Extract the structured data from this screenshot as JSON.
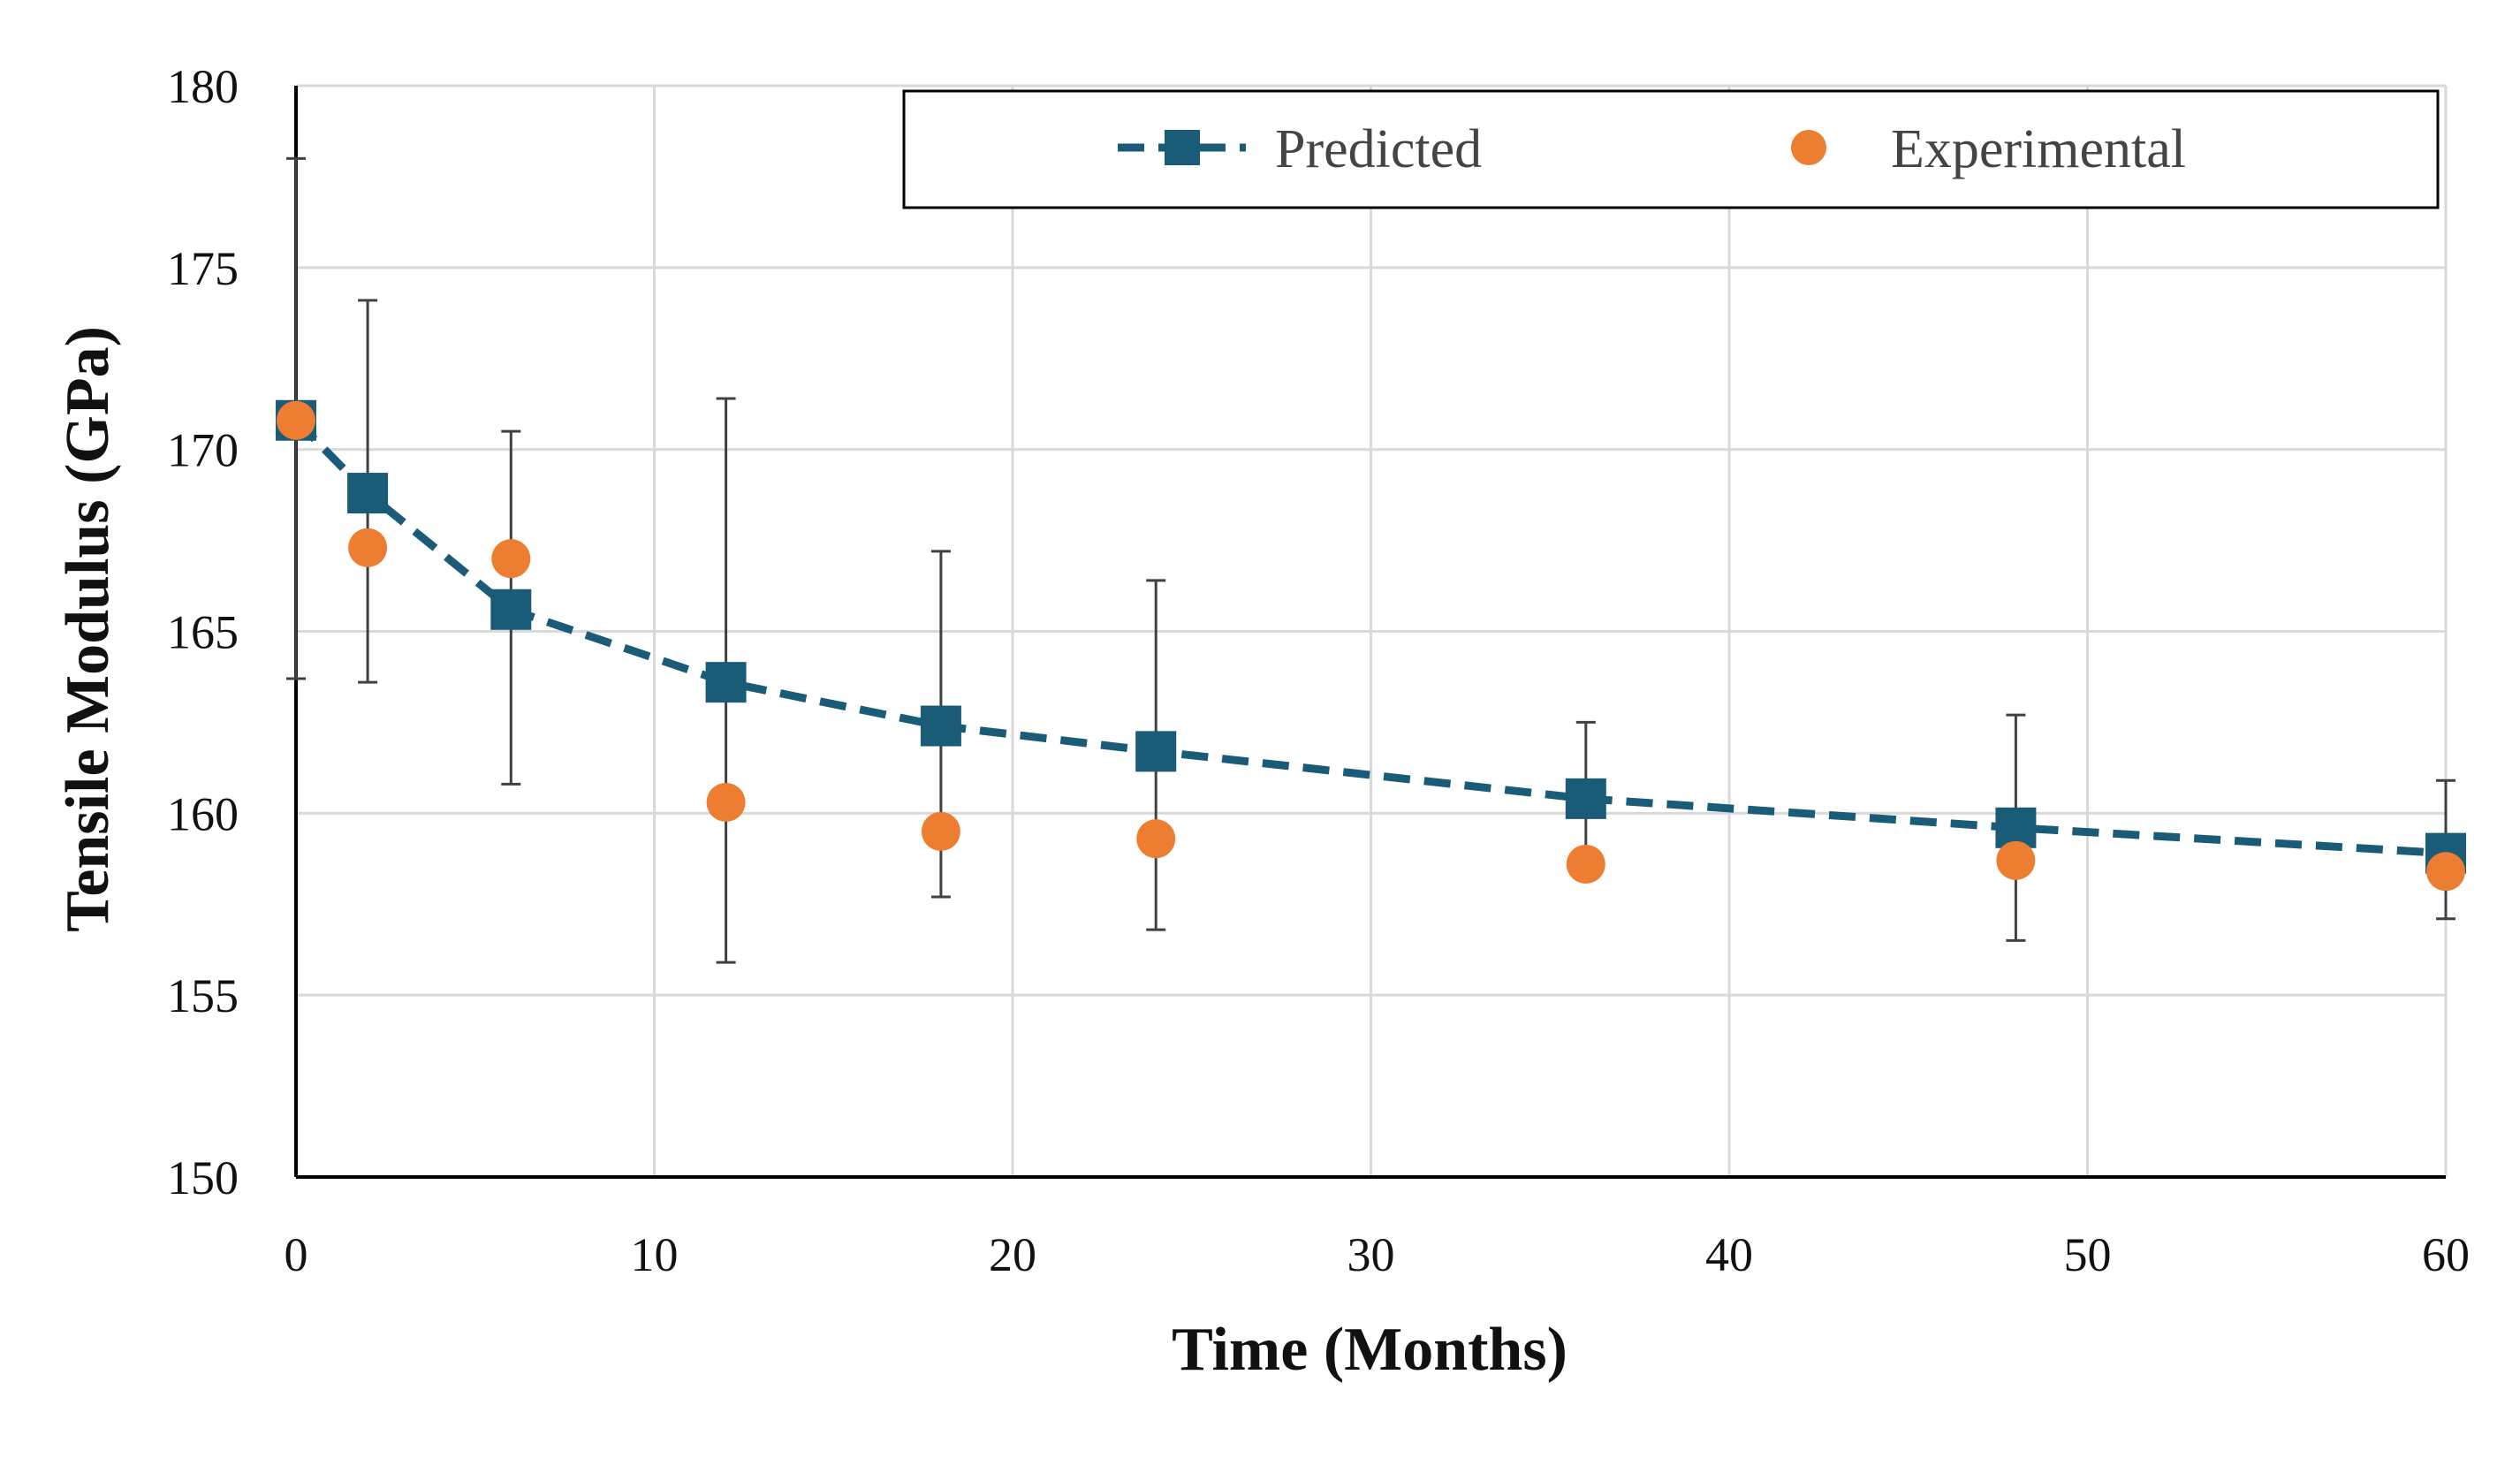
{
  "chart_data": {
    "type": "line",
    "title": "",
    "xlabel": "Time (Months)",
    "ylabel": "Tensile Modulus (GPa)",
    "xlim": [
      0,
      60
    ],
    "ylim": [
      150,
      180
    ],
    "xticks": [
      0,
      10,
      20,
      30,
      40,
      50,
      60
    ],
    "yticks": [
      150,
      155,
      160,
      165,
      170,
      175,
      180
    ],
    "grid": true,
    "legend_position": "top-right",
    "series": [
      {
        "name": "Predicted",
        "kind": "line-marker",
        "marker": "square",
        "line_style": "dashed",
        "color": "#1a5b77",
        "x": [
          0,
          2,
          6,
          12,
          18,
          24,
          36,
          48,
          60
        ],
        "values": [
          170.8,
          168.8,
          165.6,
          163.6,
          162.4,
          161.7,
          160.4,
          159.6,
          158.9
        ]
      },
      {
        "name": "Experimental",
        "kind": "scatter",
        "marker": "circle",
        "color": "#ed7d31",
        "x": [
          0,
          2,
          6,
          12,
          18,
          24,
          36,
          48,
          60
        ],
        "values": [
          170.8,
          167.3,
          167.0,
          160.3,
          159.5,
          159.3,
          158.6,
          158.7,
          158.4
        ],
        "error_low": [
          163.7,
          163.6,
          160.8,
          155.9,
          157.7,
          156.8,
          null,
          156.5,
          157.1
        ],
        "error_high": [
          178.0,
          174.1,
          170.5,
          171.4,
          167.2,
          166.4,
          162.5,
          162.7,
          160.9
        ]
      }
    ],
    "legend": [
      "Predicted",
      "Experimental"
    ],
    "colors": {
      "predicted": "#1a5b77",
      "experimental": "#ed7d31",
      "grid": "#d9d9d9",
      "axis": "#000000",
      "errorbar": "#404040"
    }
  }
}
